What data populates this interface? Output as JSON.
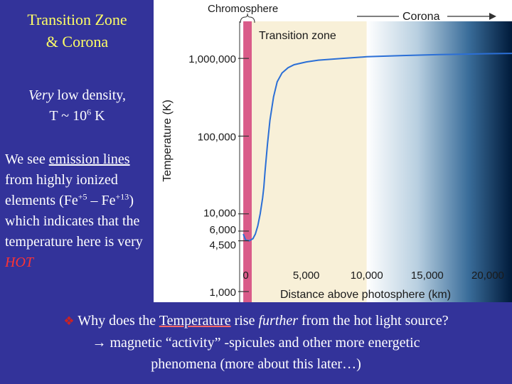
{
  "slide": {
    "title_line1": "Transition Zone",
    "title_line2": "& Corona",
    "density_italic": "Very",
    "density_rest": " low density,",
    "temp_prefix": "T  ~  10",
    "temp_exp": "6",
    "temp_unit": " K",
    "emission_pre": " We see ",
    "emission_link": "emission lines",
    "emission_mid1": " from highly ionized elements (Fe",
    "emission_sup1": "+5",
    "emission_mid2": " – Fe",
    "emission_sup2": "+13",
    "emission_mid3": ") which indicates that the temperature here is very ",
    "emission_hot": "HOT",
    "question_bullet": "❖",
    "question_pre": " Why does the ",
    "question_link": "Temperature",
    "question_mid": " rise ",
    "question_italic": "further",
    "question_post": " from the hot light source?",
    "answer_arrow": "→",
    "answer_line1": " magnetic “activity” -spicules and other more energetic",
    "answer_line2": "phenomena (more about this later…)",
    "colors": {
      "background": "#33339a",
      "title": "#ffff66",
      "hot": "#ff3333",
      "bullet": "#cc2222"
    }
  },
  "chart_data": {
    "type": "line",
    "xlabel": "Distance above photosphere (km)",
    "ylabel": "Temperature (K)",
    "xlim": [
      -500,
      22000
    ],
    "ylim": [
      1000,
      3000000
    ],
    "y_scale": "log",
    "x_ticks": [
      "0",
      "5,000",
      "10,000",
      "15,000",
      "20,000"
    ],
    "x_tick_values": [
      0,
      5000,
      10000,
      15000,
      20000
    ],
    "y_ticks": [
      "1,000,000",
      "100,000",
      "10,000",
      "6,000",
      "4,500",
      "1,000"
    ],
    "y_tick_values": [
      1000000,
      100000,
      10000,
      6000,
      4500,
      1000
    ],
    "series": [
      {
        "x": [
          -200,
          0,
          300,
          600,
          800,
          1000,
          1200,
          1400,
          1500,
          1600,
          1800,
          2000,
          2300,
          2600,
          3000,
          3500,
          4000,
          5000,
          6000,
          8000,
          10000,
          13000,
          16000,
          20000,
          22000
        ],
        "y": [
          5500,
          4600,
          4500,
          4800,
          5500,
          7000,
          10000,
          16000,
          22000,
          35000,
          80000,
          160000,
          320000,
          500000,
          650000,
          760000,
          830000,
          900000,
          950000,
          1000000,
          1050000,
          1090000,
          1120000,
          1150000,
          1160000
        ]
      }
    ],
    "regions": [
      {
        "label": "Chromosphere",
        "x": [
          -200,
          500
        ],
        "color": "#d95b89"
      },
      {
        "label": "Transition zone",
        "x": [
          500,
          10000
        ],
        "color": "#f8f0d8"
      },
      {
        "label": "Corona",
        "x": [
          10000,
          22000
        ],
        "color_from": "#ffffff",
        "color_to": "#001a3a"
      }
    ],
    "curve_color": "#2b6fd6"
  }
}
